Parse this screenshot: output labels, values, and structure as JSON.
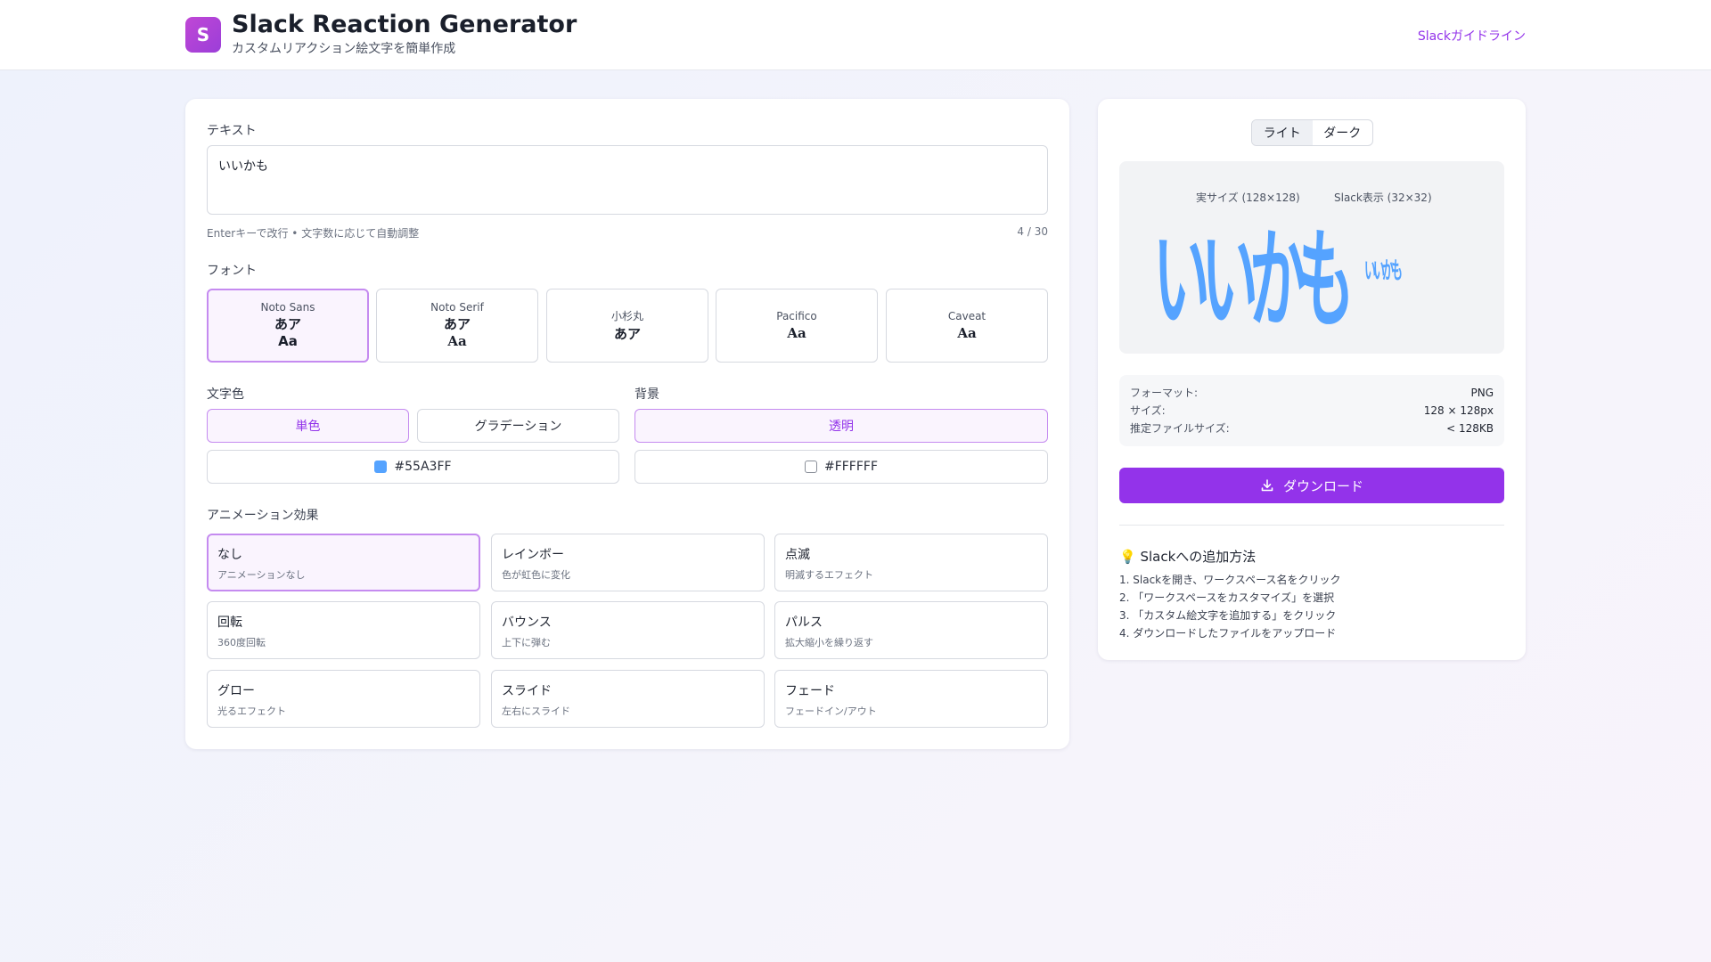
{
  "header": {
    "logo_letter": "S",
    "title": "Slack Reaction Generator",
    "subtitle": "カスタムリアクション絵文字を簡単作成",
    "guideline_link": "Slackガイドライン"
  },
  "text_section": {
    "label": "テキスト",
    "value": "いいかも",
    "hint": "Enterキーで改行 • 文字数に応じて自動調整",
    "char_count": "4 / 30"
  },
  "font_section": {
    "label": "フォント",
    "options": [
      {
        "name": "Noto Sans",
        "sample_jp": "あア",
        "sample_en": "Aa",
        "selected": true
      },
      {
        "name": "Noto Serif",
        "sample_jp": "あア",
        "sample_en": "Aa",
        "selected": false
      },
      {
        "name": "小杉丸",
        "sample_jp": "あア",
        "sample_en": "",
        "selected": false
      },
      {
        "name": "Pacifico",
        "sample_jp": "",
        "sample_en": "Aa",
        "selected": false
      },
      {
        "name": "Caveat",
        "sample_jp": "",
        "sample_en": "Aa",
        "selected": false
      }
    ]
  },
  "text_color": {
    "label": "文字色",
    "solid_label": "単色",
    "gradient_label": "グラデーション",
    "value": "#55A3FF"
  },
  "background": {
    "label": "背景",
    "transparent_label": "透明",
    "value": "#FFFFFF"
  },
  "animation": {
    "label": "アニメーション効果",
    "options": [
      {
        "title": "なし",
        "desc": "アニメーションなし",
        "selected": true
      },
      {
        "title": "レインボー",
        "desc": "色が虹色に変化",
        "selected": false
      },
      {
        "title": "点滅",
        "desc": "明滅するエフェクト",
        "selected": false
      },
      {
        "title": "回転",
        "desc": "360度回転",
        "selected": false
      },
      {
        "title": "バウンス",
        "desc": "上下に弾む",
        "selected": false
      },
      {
        "title": "パルス",
        "desc": "拡大縮小を繰り返す",
        "selected": false
      },
      {
        "title": "グロー",
        "desc": "光るエフェクト",
        "selected": false
      },
      {
        "title": "スライド",
        "desc": "左右にスライド",
        "selected": false
      },
      {
        "title": "フェード",
        "desc": "フェードイン/アウト",
        "selected": false
      }
    ]
  },
  "preview": {
    "theme_light": "ライト",
    "theme_dark": "ダーク",
    "actual_size_label": "実サイズ (128×128)",
    "slack_size_label": "Slack表示 (32×32)",
    "emoji_text": "いいかも"
  },
  "info": {
    "format_label": "フォーマット:",
    "format_value": "PNG",
    "size_label": "サイズ:",
    "size_value": "128 × 128px",
    "filesize_label": "推定ファイルサイズ:",
    "filesize_value": "< 128KB"
  },
  "download_label": "ダウンロード",
  "howto": {
    "title": "💡 Slackへの追加方法",
    "steps": [
      "1. Slackを開き、ワークスペース名をクリック",
      "2. 「ワークスペースをカスタマイズ」を選択",
      "3. 「カスタム絵文字を追加する」をクリック",
      "4. ダウンロードしたファイルをアップロード"
    ]
  },
  "colors": {
    "accent": "#9333ea",
    "emoji_color": "#55A3FF"
  }
}
